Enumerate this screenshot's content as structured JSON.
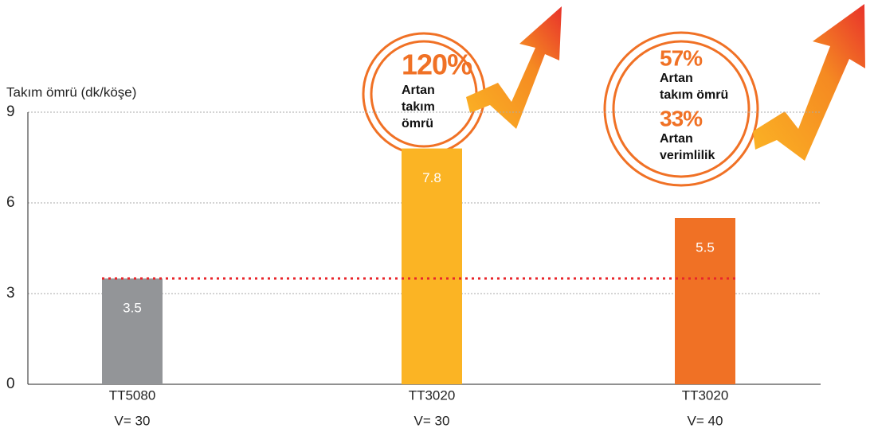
{
  "chart_data": {
    "type": "bar",
    "y_label": "Takım ömrü (dk/köşe)",
    "categories": [
      "TT5080",
      "TT3020",
      "TT3020"
    ],
    "speeds": [
      "V= 30",
      "V= 30",
      "V= 40"
    ],
    "values": [
      3.5,
      7.8,
      5.5
    ],
    "colors": [
      "#939598",
      "#fbb424",
      "#f07125"
    ],
    "ylim": [
      0,
      9
    ],
    "yticks": [
      0,
      3,
      6,
      9
    ],
    "grid": true,
    "reference_line": {
      "value": 3.5,
      "color": "#e8262b"
    },
    "annotations": [
      {
        "lines": [
          {
            "text": "120%",
            "big": true
          },
          {
            "text": "Artan"
          },
          {
            "text": "takım"
          },
          {
            "text": "ömrü"
          }
        ]
      },
      {
        "lines": [
          {
            "text": "57%",
            "big": true
          },
          {
            "text": "Artan"
          },
          {
            "text": "takım ömrü"
          },
          {
            "text": "33%",
            "big": true
          },
          {
            "text": "Artan"
          },
          {
            "text": "verimlilik"
          }
        ]
      }
    ]
  }
}
